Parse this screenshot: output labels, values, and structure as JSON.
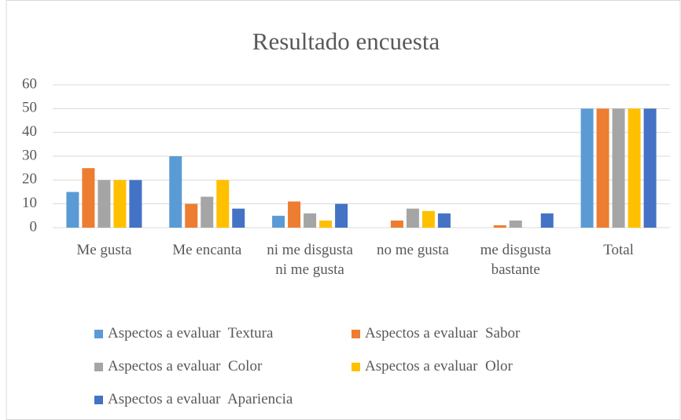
{
  "chart_data": {
    "type": "bar",
    "title": "Resultado  encuesta",
    "categories": [
      "Me gusta",
      "Me encanta",
      "ni me disgusta ni me gusta",
      "no me gusta",
      "me disgusta bastante",
      "Total"
    ],
    "series": [
      {
        "name": "Aspectos a evaluar  Textura",
        "color": "#5b9bd5",
        "values": [
          15,
          30,
          5,
          0,
          0,
          50
        ]
      },
      {
        "name": "Aspectos a evaluar  Sabor",
        "color": "#ed7d31",
        "values": [
          25,
          10,
          11,
          3,
          1,
          50
        ]
      },
      {
        "name": "Aspectos a evaluar  Color",
        "color": "#a5a5a5",
        "values": [
          20,
          13,
          6,
          8,
          3,
          50
        ]
      },
      {
        "name": "Aspectos a evaluar  Olor",
        "color": "#ffc000",
        "values": [
          20,
          20,
          3,
          7,
          0,
          50
        ]
      },
      {
        "name": "Aspectos a evaluar  Apariencia",
        "color": "#4472c4",
        "values": [
          20,
          8,
          10,
          6,
          6,
          50
        ]
      }
    ],
    "ylim": [
      0,
      60
    ],
    "yticks": [
      0,
      10,
      20,
      30,
      40,
      50,
      60
    ],
    "grid": true,
    "legend": "bottom"
  }
}
